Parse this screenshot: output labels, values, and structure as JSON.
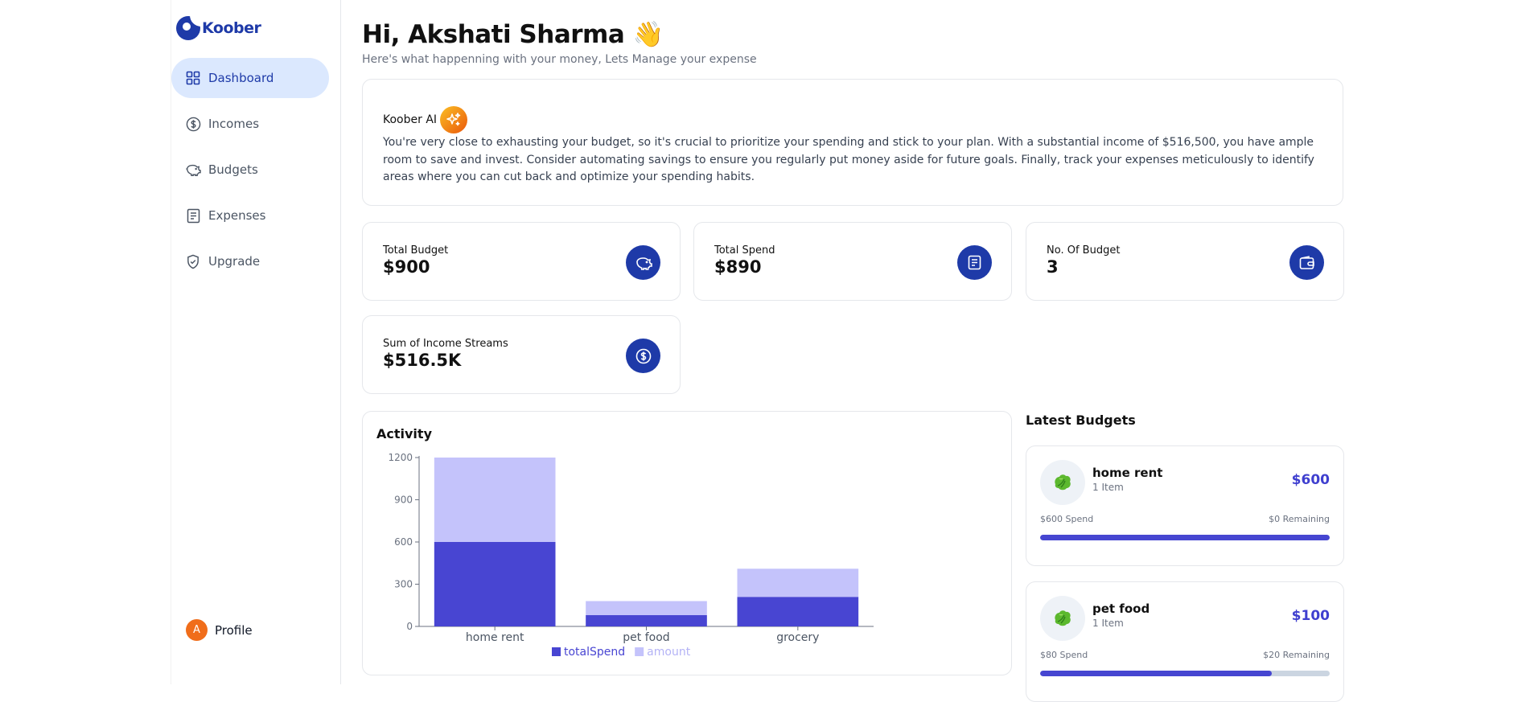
{
  "brand": {
    "name": "Koober"
  },
  "sidebar": {
    "items": [
      {
        "label": "Dashboard",
        "icon": "grid-icon",
        "active": true
      },
      {
        "label": "Incomes",
        "icon": "dollar-circle-icon",
        "active": false
      },
      {
        "label": "Budgets",
        "icon": "piggy-bank-icon",
        "active": false
      },
      {
        "label": "Expenses",
        "icon": "receipt-icon",
        "active": false
      },
      {
        "label": "Upgrade",
        "icon": "shield-check-icon",
        "active": false
      }
    ],
    "profile": {
      "initial": "A",
      "label": "Profile"
    }
  },
  "header": {
    "greeting": "Hi, Akshati Sharma 👋",
    "subtitle": "Here's what happenning with your money, Lets Manage your expense"
  },
  "ai": {
    "title": "Koober AI",
    "text": "You're very close to exhausting your budget, so it's crucial to prioritize your spending and stick to your plan. With a substantial income of $516,500, you have ample room to save and invest. Consider automating savings to ensure you regularly put money aside for future goals. Finally, track your expenses meticulously to identify areas where you can cut back and optimize your spending habits."
  },
  "stats": [
    {
      "label": "Total Budget",
      "value": "$900",
      "icon": "piggy-bank-icon"
    },
    {
      "label": "Total Spend",
      "value": "$890",
      "icon": "receipt-icon"
    },
    {
      "label": "No. Of Budget",
      "value": "3",
      "icon": "wallet-icon"
    },
    {
      "label": "Sum of Income Streams",
      "value": "$516.5K",
      "icon": "dollar-circle-icon"
    }
  ],
  "activity": {
    "title": "Activity"
  },
  "chart_data": {
    "type": "bar",
    "stacked": true,
    "categories": [
      "home rent",
      "pet food",
      "grocery"
    ],
    "series": [
      {
        "name": "totalSpend",
        "color": "#4845d2",
        "values": [
          600,
          80,
          210
        ]
      },
      {
        "name": "amount",
        "color": "#c4c3fb",
        "values": [
          600,
          100,
          200
        ]
      }
    ],
    "ylim": [
      0,
      1200
    ],
    "yticks": [
      0,
      300,
      600,
      900,
      1200
    ],
    "legend": "bottom",
    "grid": false
  },
  "latest_budgets": {
    "title": "Latest Budgets",
    "items": [
      {
        "name": "home rent",
        "items": "1 Item",
        "amount": "$600",
        "spend": "$600 Spend",
        "remaining": "$0 Remaining",
        "progress": 1.0
      },
      {
        "name": "pet food",
        "items": "1 Item",
        "amount": "$100",
        "spend": "$80 Spend",
        "remaining": "$20 Remaining",
        "progress": 0.8
      }
    ]
  }
}
